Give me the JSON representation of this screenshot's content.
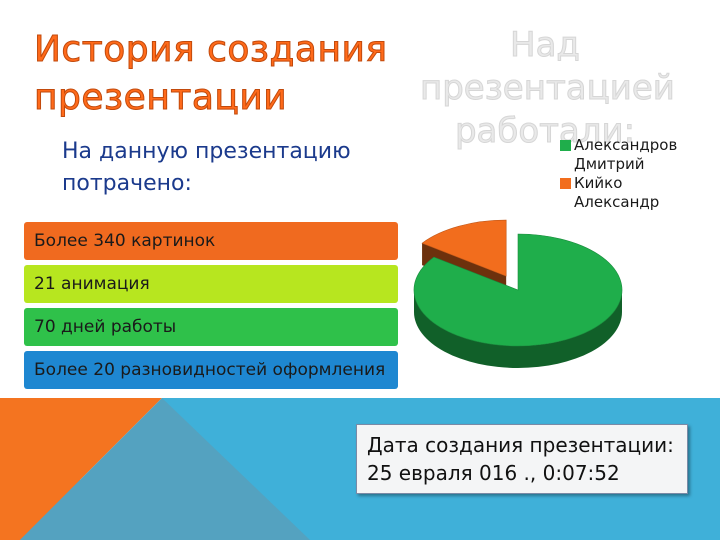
{
  "slide": {
    "title_line1": "История создания",
    "title_line2": "презентации",
    "subtitle_line1": "На данную презентацию",
    "subtitle_line2": "потрачено:",
    "bars": [
      {
        "label": "Более 340 картинок",
        "color": "#f06a1f"
      },
      {
        "label": "21 анимация",
        "color": "#b7e61f"
      },
      {
        "label": "70 дней работы",
        "color": "#2fc14a"
      },
      {
        "label": "Более 20 разновидностей оформления",
        "color": "#1e87d1"
      }
    ],
    "date_line1": "Дата создания презентации:",
    "date_line2": "25 евраля 016 ., 0:07:52",
    "colors": {
      "orange": "#f47420",
      "teal": "#3fb0d9",
      "grey": "#7b8a93"
    }
  },
  "chart_data": {
    "type": "pie",
    "title_lines": [
      "Над",
      "презентацией",
      "работали:"
    ],
    "labels": [
      "Александров Дмитрий",
      "Кийко Александр"
    ],
    "legend_lines": [
      [
        "Александров",
        "Дмитрий"
      ],
      [
        "Кийко",
        "Александр"
      ]
    ],
    "values": [
      85,
      15
    ],
    "colors": [
      "#1fae4b",
      "#f26d1d"
    ],
    "legend_position": "right"
  }
}
